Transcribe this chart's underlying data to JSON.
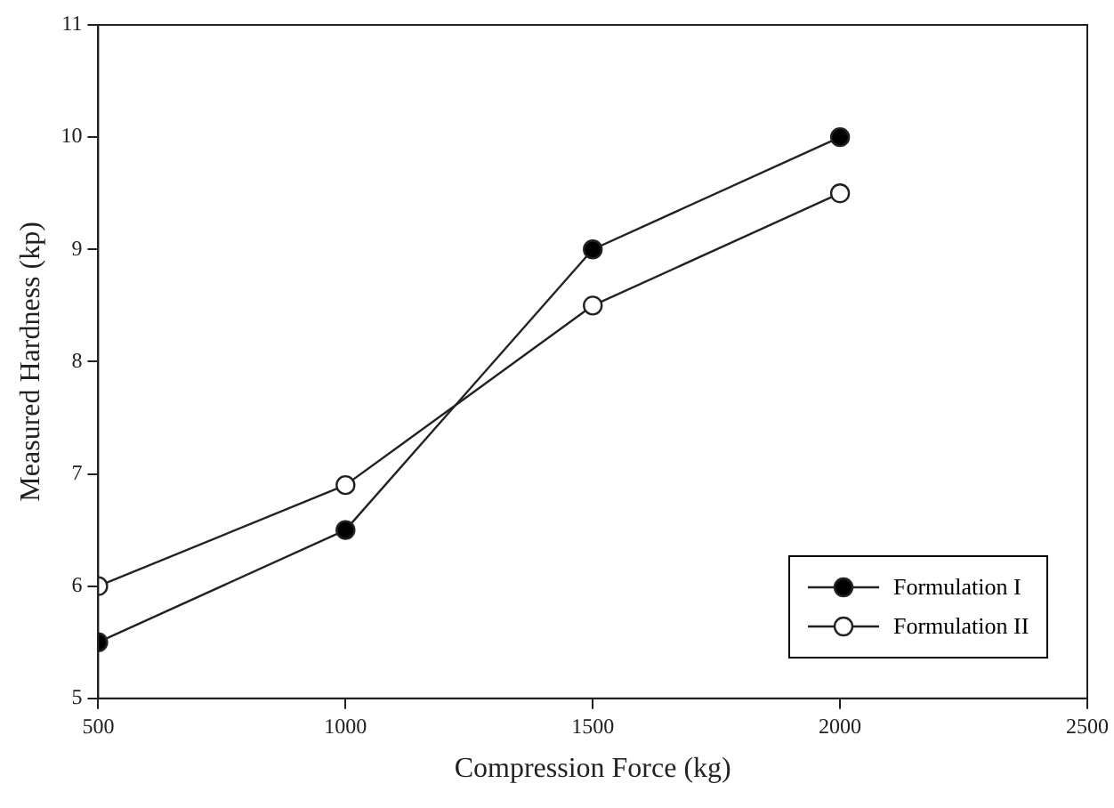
{
  "chart_data": {
    "type": "line",
    "xlabel": "Compression Force (kg)",
    "ylabel": "Measured Hardness (kp)",
    "x": [
      500,
      1000,
      1500,
      2000
    ],
    "series": [
      {
        "name": "Formulation I",
        "color": "#000000",
        "values": [
          5.5,
          6.5,
          9.0,
          10.0
        ]
      },
      {
        "name": "Formulation II",
        "color": "#ffffff",
        "values": [
          6.0,
          6.9,
          8.5,
          9.5
        ]
      }
    ],
    "xlim": [
      500,
      2500
    ],
    "xticks": [
      500,
      1000,
      1500,
      2000,
      2500
    ],
    "ylim": [
      5,
      11
    ],
    "yticks": [
      5,
      6,
      7,
      8,
      9,
      10,
      11
    ],
    "grid": false,
    "legend": "bottom right",
    "marker": "circle",
    "line_style": "solid"
  }
}
